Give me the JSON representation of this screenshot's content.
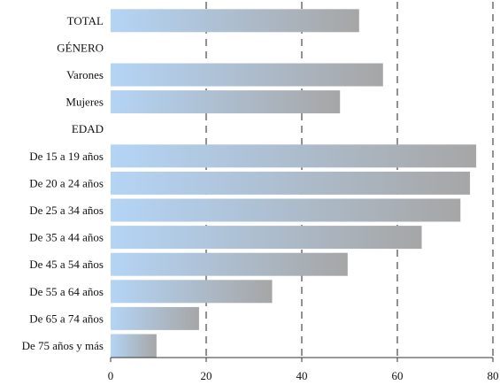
{
  "chart_data": {
    "type": "bar",
    "orientation": "horizontal",
    "categories": [
      "TOTAL",
      "GÉNERO",
      "Varones",
      "Mujeres",
      "EDAD",
      "De 15 a 19 años",
      "De 20 a 24 años",
      "De 25 a 34 años",
      "De 35 a 44 años",
      "De 45 a 54 años",
      "De 55 a 64 años",
      "De 65 a 74 años",
      "De 75 años y más"
    ],
    "values": [
      52,
      null,
      57,
      48,
      null,
      76.5,
      75.2,
      73.2,
      65.1,
      49.6,
      33.8,
      18.5,
      9.6
    ],
    "title": "",
    "xlabel": "",
    "ylabel": "",
    "xlim": [
      0,
      80
    ],
    "xticks": [
      0,
      20,
      40,
      60,
      80
    ],
    "grid": "vertical dashed",
    "legend": "none",
    "bar_color_light": "#b4d4f5",
    "bar_color_dark": "#a6a6a6"
  }
}
